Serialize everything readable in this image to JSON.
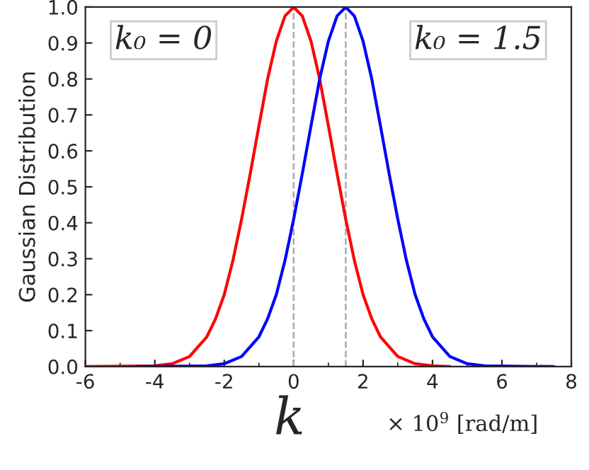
{
  "chart_data": {
    "type": "line",
    "xlabel": "k",
    "ylabel": "Gaussian Distribution",
    "annotations": [
      "k₀ = 0",
      "k₀ = 1.5",
      "× 10$^{9}$ [rad/m]"
    ],
    "series": [
      {
        "color": "#ff0000",
        "x": [
          -6,
          -4,
          -3.5,
          -3,
          -2.5,
          -2.25,
          -2,
          -1.75,
          -1.5,
          -1.25,
          -1,
          -0.75,
          -0.5,
          -0.25,
          0,
          0.25,
          0.5,
          0.75,
          1,
          1.25,
          1.5,
          1.75,
          2,
          2.25,
          2.5,
          3,
          3.5,
          4,
          4.5
        ],
        "values": [
          0,
          0.002,
          0.008,
          0.028,
          0.083,
          0.133,
          0.2,
          0.295,
          0.41,
          0.537,
          0.67,
          0.8,
          0.905,
          0.975,
          1,
          0.975,
          0.905,
          0.8,
          0.67,
          0.537,
          0.41,
          0.295,
          0.2,
          0.133,
          0.083,
          0.028,
          0.008,
          0.002,
          0
        ]
      },
      {
        "color": "#0000ff",
        "x": [
          -4.5,
          -2.5,
          -2,
          -1.5,
          -1,
          -0.75,
          -0.5,
          -0.25,
          0,
          0.25,
          0.5,
          0.75,
          1,
          1.25,
          1.5,
          1.75,
          2,
          2.25,
          2.5,
          2.75,
          3,
          3.25,
          3.5,
          3.75,
          4,
          4.5,
          5,
          5.5,
          7.5
        ],
        "values": [
          0,
          0.002,
          0.008,
          0.028,
          0.083,
          0.133,
          0.2,
          0.295,
          0.41,
          0.537,
          0.67,
          0.8,
          0.905,
          0.975,
          1,
          0.975,
          0.905,
          0.8,
          0.67,
          0.537,
          0.41,
          0.295,
          0.2,
          0.133,
          0.083,
          0.028,
          0.008,
          0.002,
          0
        ]
      }
    ],
    "ref_lines": [
      {
        "axis": "x",
        "value": 0,
        "color": "#aaaaaa",
        "line_style": "dashed"
      },
      {
        "axis": "x",
        "value": 1.5,
        "color": "#aaaaaa",
        "line_style": "dashed"
      }
    ],
    "xlim": [
      -6,
      8
    ],
    "xticks": [
      -6,
      -4,
      -2,
      0,
      2,
      4,
      6,
      8
    ],
    "ylim": [
      0,
      1
    ],
    "yticks": [
      {
        "value": 0,
        "label": "0.0"
      },
      {
        "value": 0.1,
        "label": "0.1"
      },
      {
        "value": 0.2,
        "label": "0.2"
      },
      {
        "value": 0.3,
        "label": "0.3"
      },
      {
        "value": 0.4,
        "label": "0.4"
      },
      {
        "value": 0.5,
        "label": "0.5"
      },
      {
        "value": 0.6,
        "label": "0.6"
      },
      {
        "value": 0.7,
        "label": "0.7"
      },
      {
        "value": 0.8,
        "label": "0.8"
      },
      {
        "value": 0.9,
        "label": "0.9"
      },
      {
        "value": 1,
        "label": "1.0"
      }
    ],
    "grid": false
  }
}
